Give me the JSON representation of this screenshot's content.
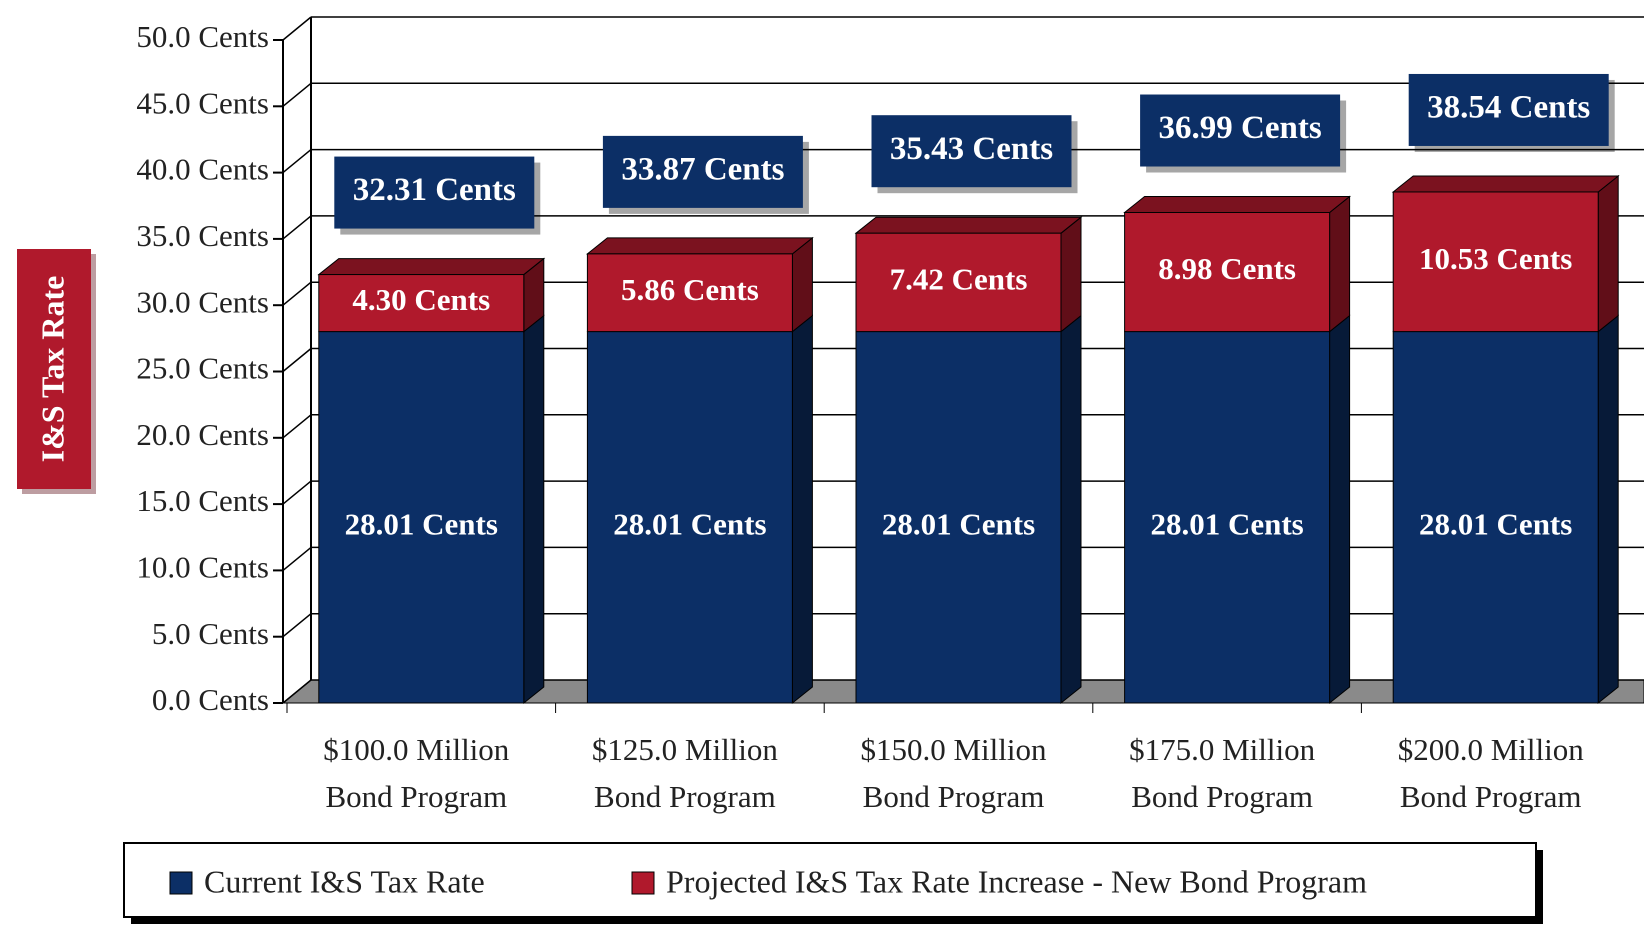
{
  "chart_data": {
    "type": "stacked_bar_3d",
    "y_label": "I&S Tax Rate",
    "categories": [
      [
        "$100.0 Million",
        "Bond Program"
      ],
      [
        "$125.0 Million",
        "Bond Program"
      ],
      [
        "$150.0 Million",
        "Bond Program"
      ],
      [
        "$175.0 Million",
        "Bond Program"
      ],
      [
        "$200.0 Million",
        "Bond Program"
      ]
    ],
    "series": [
      {
        "name": "Current I&S Tax Rate",
        "color": "#0c2f66",
        "values": [
          28.01,
          28.01,
          28.01,
          28.01,
          28.01
        ],
        "value_labels": [
          "28.01 Cents",
          "28.01 Cents",
          "28.01 Cents",
          "28.01 Cents",
          "28.01 Cents"
        ]
      },
      {
        "name": "Projected I&S Tax Rate Increase - New Bond Program",
        "color": "#b0192c",
        "values": [
          4.3,
          5.86,
          7.42,
          8.98,
          10.53
        ],
        "value_labels": [
          "4.30 Cents",
          "5.86 Cents",
          "7.42 Cents",
          "8.98 Cents",
          "10.53 Cents"
        ]
      }
    ],
    "totals": [
      32.31,
      33.87,
      35.43,
      36.99,
      38.54
    ],
    "total_labels": [
      "32.31 Cents",
      "33.87 Cents",
      "35.43 Cents",
      "36.99 Cents",
      "38.54 Cents"
    ],
    "ylim": [
      0,
      50
    ],
    "yticks": [
      {
        "value": 0,
        "label": "0.0 Cents"
      },
      {
        "value": 5,
        "label": "5.0 Cents"
      },
      {
        "value": 10,
        "label": "10.0 Cents"
      },
      {
        "value": 15,
        "label": "15.0 Cents"
      },
      {
        "value": 20,
        "label": "20.0 Cents"
      },
      {
        "value": 25,
        "label": "25.0 Cents"
      },
      {
        "value": 30,
        "label": "30.0 Cents"
      },
      {
        "value": 35,
        "label": "35.0 Cents"
      },
      {
        "value": 40,
        "label": "40.0 Cents"
      },
      {
        "value": 45,
        "label": "45.0 Cents"
      },
      {
        "value": 50,
        "label": "50.0 Cents"
      }
    ],
    "grid": true,
    "legend": "bottom"
  }
}
